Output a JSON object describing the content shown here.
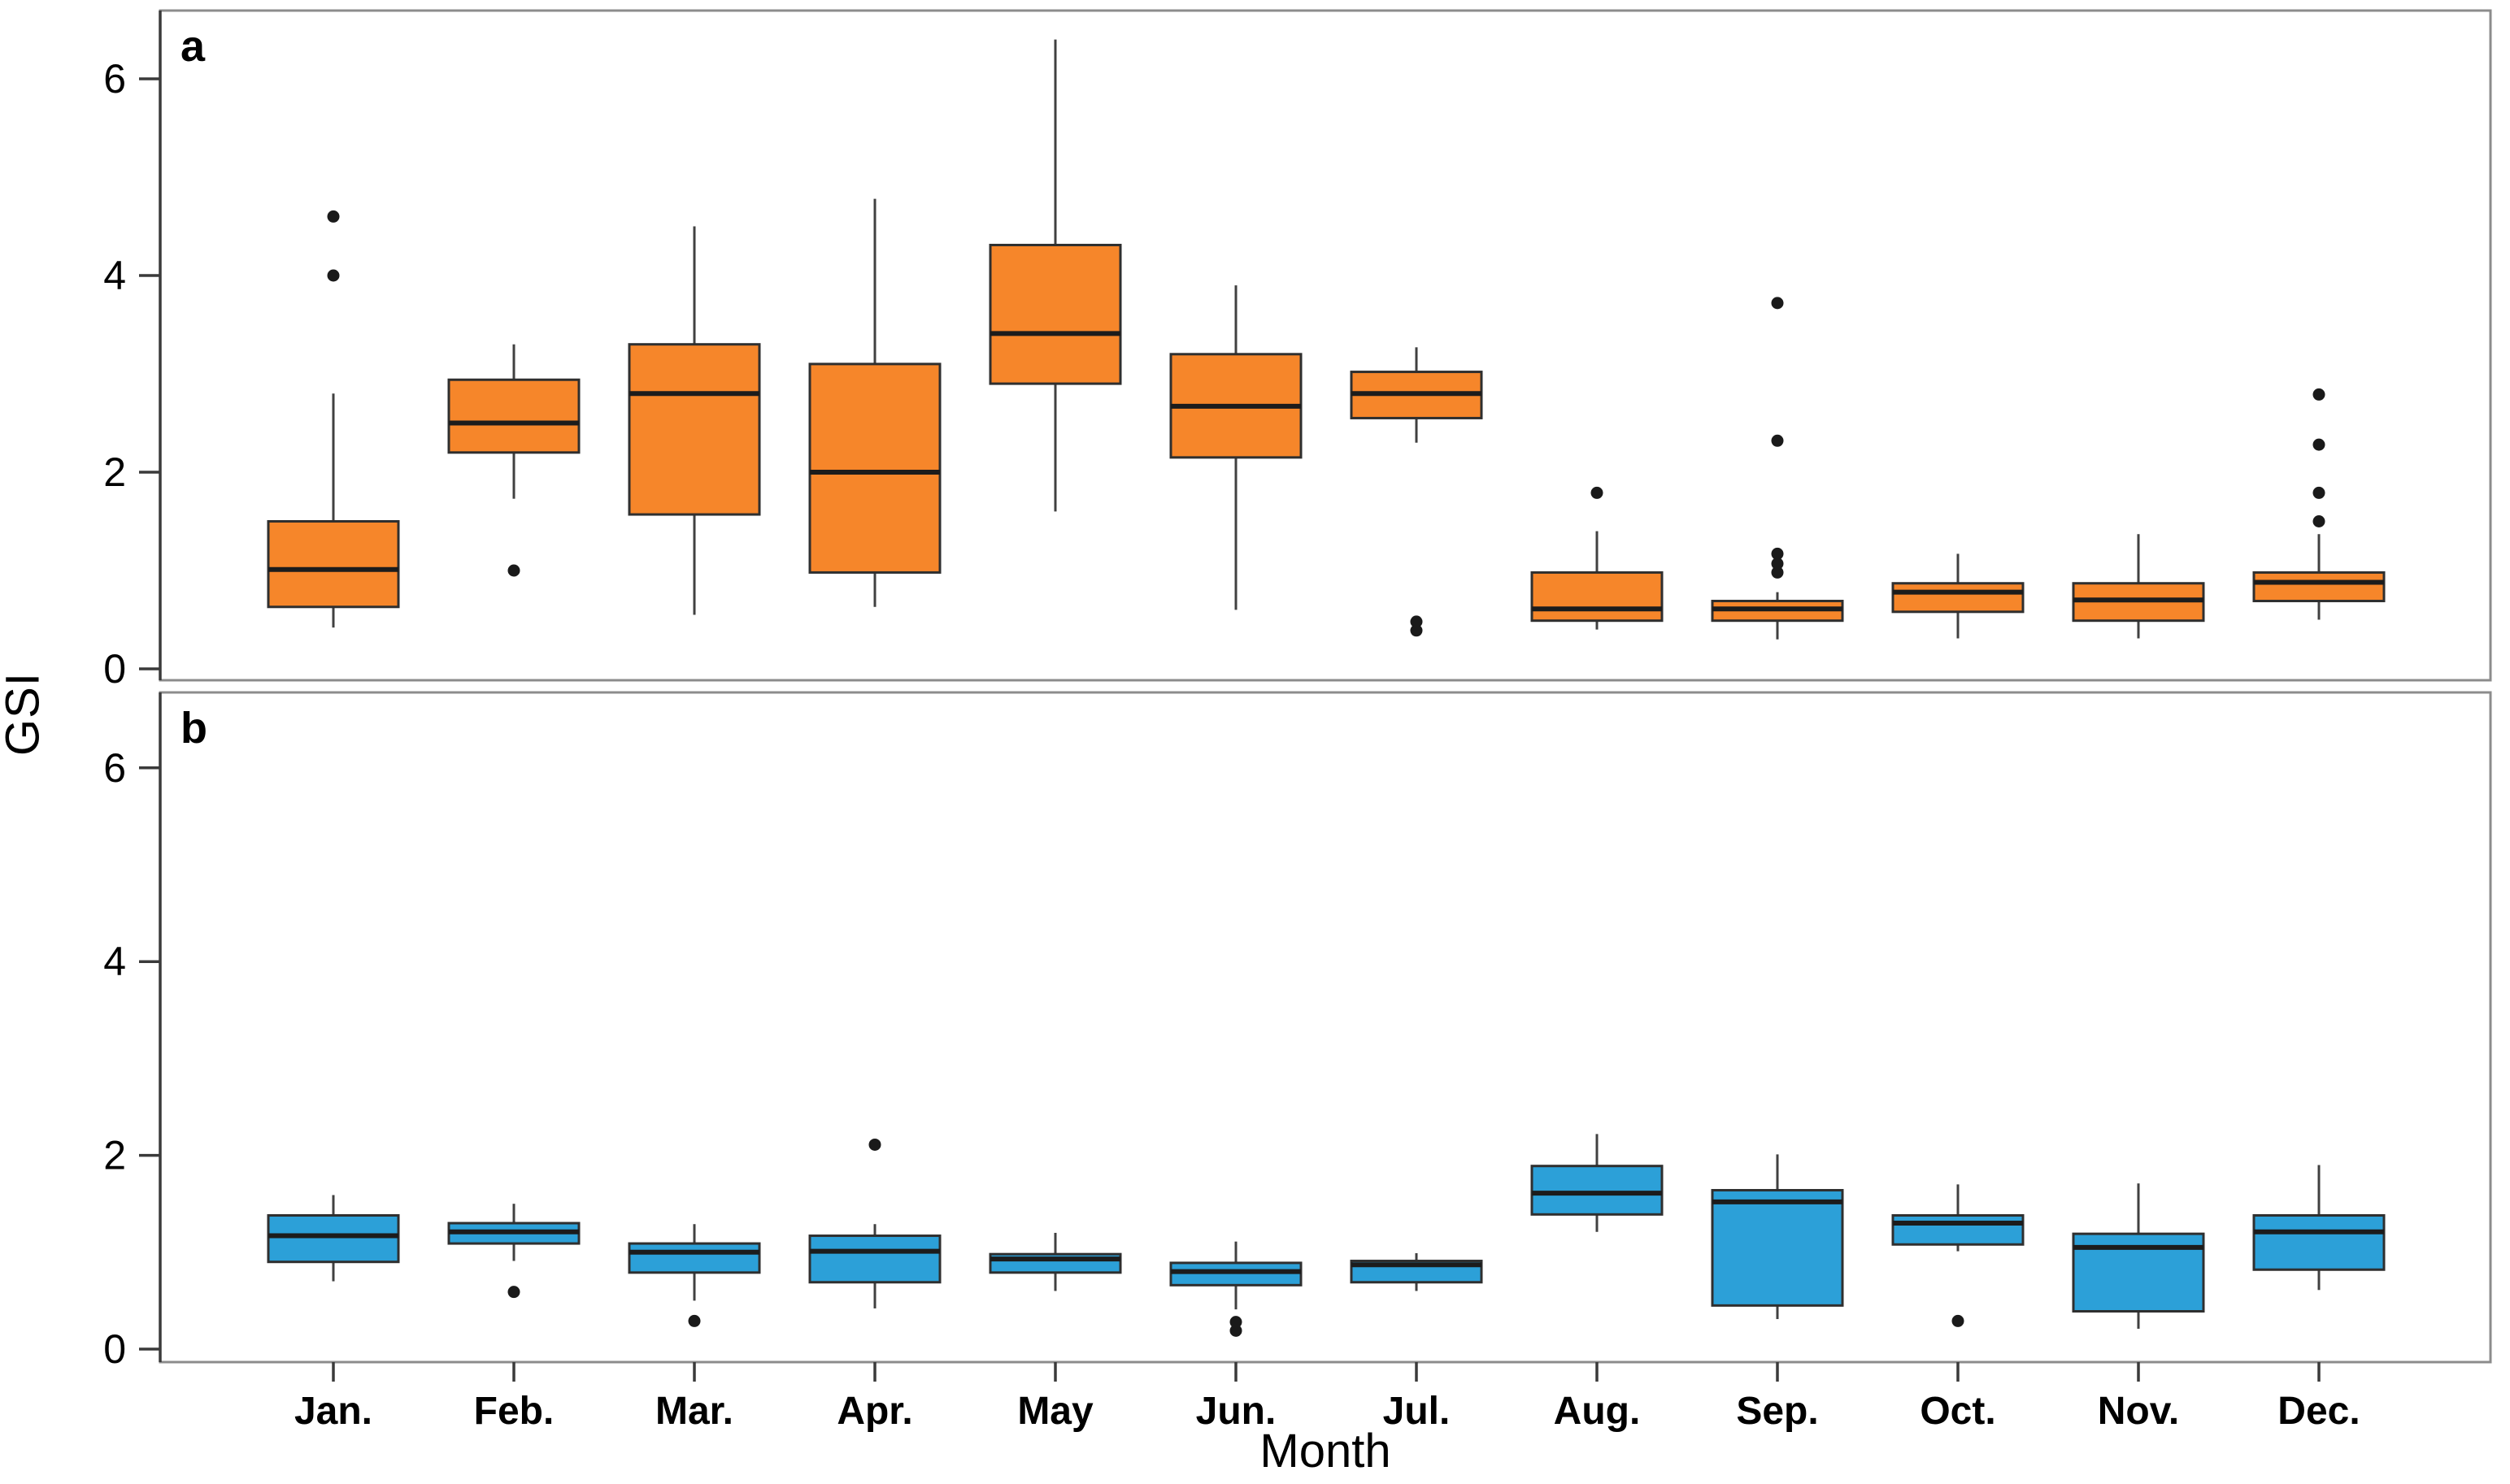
{
  "figure": {
    "ylabel": "GSI",
    "xlabel": "Month"
  },
  "style": {
    "background": "#FFFFFF",
    "panel_frame_color": "#8C8C8C",
    "axis_tick_color": "#3A3A3A",
    "text_color": "#000000",
    "box_border_color": "#2F2F2F",
    "median_color": "#1C1C1C",
    "whisker_color": "#404040",
    "outlier_color": "#1A1A1A",
    "panel_a_fill": "#F6862A",
    "panel_b_fill": "#2CA0D8"
  },
  "chart_data": [
    {
      "type": "boxplot",
      "panel_label": "a",
      "ylabel": "GSI",
      "xlabel": "Month",
      "ylim": [
        -0.15,
        6.75
      ],
      "yticks": [
        0,
        2,
        4,
        6
      ],
      "grid": false,
      "legend": "none",
      "box_fill": "#F6862A",
      "categories": [
        "Jan.",
        "Feb.",
        "Mar.",
        "Apr.",
        "May",
        "Jun.",
        "Jul.",
        "Aug.",
        "Sep.",
        "Oct.",
        "Nov.",
        "Dec."
      ],
      "series": [
        {
          "month": "Jan.",
          "whisker_low": 0.42,
          "q1": 0.63,
          "median": 1.01,
          "q3": 1.5,
          "whisker_high": 2.8,
          "outliers": [
            4.0,
            4.6
          ]
        },
        {
          "month": "Feb.",
          "whisker_low": 1.73,
          "q1": 2.2,
          "median": 2.5,
          "q3": 2.94,
          "whisker_high": 3.3,
          "outliers": [
            1.0
          ]
        },
        {
          "month": "Mar.",
          "whisker_low": 0.55,
          "q1": 1.57,
          "median": 2.8,
          "q3": 3.3,
          "whisker_high": 4.5,
          "outliers": []
        },
        {
          "month": "Apr.",
          "whisker_low": 0.63,
          "q1": 0.98,
          "median": 2.0,
          "q3": 3.1,
          "whisker_high": 4.78,
          "outliers": []
        },
        {
          "month": "May",
          "whisker_low": 1.6,
          "q1": 2.9,
          "median": 3.41,
          "q3": 4.31,
          "whisker_high": 6.4,
          "outliers": []
        },
        {
          "month": "Jun.",
          "whisker_low": 0.6,
          "q1": 2.15,
          "median": 2.67,
          "q3": 3.2,
          "whisker_high": 3.9,
          "outliers": []
        },
        {
          "month": "Jul.",
          "whisker_low": 2.3,
          "q1": 2.55,
          "median": 2.8,
          "q3": 3.02,
          "whisker_high": 3.27,
          "outliers": [
            0.39,
            0.48
          ]
        },
        {
          "month": "Aug.",
          "whisker_low": 0.4,
          "q1": 0.49,
          "median": 0.61,
          "q3": 0.98,
          "whisker_high": 1.4,
          "outliers": [
            1.79
          ]
        },
        {
          "month": "Sep.",
          "whisker_low": 0.3,
          "q1": 0.49,
          "median": 0.61,
          "q3": 0.69,
          "whisker_high": 0.78,
          "outliers": [
            0.98,
            1.07,
            1.17,
            2.32,
            3.72
          ]
        },
        {
          "month": "Oct.",
          "whisker_low": 0.31,
          "q1": 0.58,
          "median": 0.78,
          "q3": 0.87,
          "whisker_high": 1.17,
          "outliers": []
        },
        {
          "month": "Nov.",
          "whisker_low": 0.31,
          "q1": 0.49,
          "median": 0.7,
          "q3": 0.87,
          "whisker_high": 1.37,
          "outliers": []
        },
        {
          "month": "Dec.",
          "whisker_low": 0.5,
          "q1": 0.69,
          "median": 0.88,
          "q3": 0.98,
          "whisker_high": 1.37,
          "outliers": [
            1.5,
            1.79,
            2.28,
            2.79
          ]
        }
      ]
    },
    {
      "type": "boxplot",
      "panel_label": "b",
      "ylabel": "GSI",
      "xlabel": "Month",
      "ylim": [
        -0.15,
        6.75
      ],
      "yticks": [
        0,
        2,
        4,
        6
      ],
      "grid": false,
      "legend": "none",
      "box_fill": "#2CA0D8",
      "categories": [
        "Jan.",
        "Feb.",
        "Mar.",
        "Apr.",
        "May",
        "Jun.",
        "Jul.",
        "Aug.",
        "Sep.",
        "Oct.",
        "Nov.",
        "Dec."
      ],
      "series": [
        {
          "month": "Jan.",
          "whisker_low": 0.7,
          "q1": 0.9,
          "median": 1.17,
          "q3": 1.38,
          "whisker_high": 1.59,
          "outliers": []
        },
        {
          "month": "Feb.",
          "whisker_low": 0.91,
          "q1": 1.09,
          "median": 1.21,
          "q3": 1.3,
          "whisker_high": 1.5,
          "outliers": [
            0.59
          ]
        },
        {
          "month": "Mar.",
          "whisker_low": 0.5,
          "q1": 0.79,
          "median": 1.0,
          "q3": 1.09,
          "whisker_high": 1.29,
          "outliers": [
            0.29
          ]
        },
        {
          "month": "Apr.",
          "whisker_low": 0.42,
          "q1": 0.69,
          "median": 1.01,
          "q3": 1.17,
          "whisker_high": 1.29,
          "outliers": [
            2.11
          ]
        },
        {
          "month": "May",
          "whisker_low": 0.6,
          "q1": 0.79,
          "median": 0.93,
          "q3": 0.98,
          "whisker_high": 1.2,
          "outliers": []
        },
        {
          "month": "Jun.",
          "whisker_low": 0.41,
          "q1": 0.66,
          "median": 0.8,
          "q3": 0.89,
          "whisker_high": 1.11,
          "outliers": [
            0.19,
            0.28
          ]
        },
        {
          "month": "Jul.",
          "whisker_low": 0.6,
          "q1": 0.69,
          "median": 0.87,
          "q3": 0.91,
          "whisker_high": 0.99,
          "outliers": []
        },
        {
          "month": "Aug.",
          "whisker_low": 1.21,
          "q1": 1.39,
          "median": 1.61,
          "q3": 1.89,
          "whisker_high": 2.22,
          "outliers": []
        },
        {
          "month": "Sep.",
          "whisker_low": 0.31,
          "q1": 0.45,
          "median": 1.52,
          "q3": 1.64,
          "whisker_high": 2.01,
          "outliers": []
        },
        {
          "month": "Oct.",
          "whisker_low": 1.01,
          "q1": 1.08,
          "median": 1.3,
          "q3": 1.38,
          "whisker_high": 1.7,
          "outliers": [
            0.29
          ]
        },
        {
          "month": "Nov.",
          "whisker_low": 0.21,
          "q1": 0.39,
          "median": 1.05,
          "q3": 1.19,
          "whisker_high": 1.71,
          "outliers": []
        },
        {
          "month": "Dec.",
          "whisker_low": 0.61,
          "q1": 0.82,
          "median": 1.21,
          "q3": 1.38,
          "whisker_high": 1.9,
          "outliers": []
        }
      ]
    }
  ]
}
